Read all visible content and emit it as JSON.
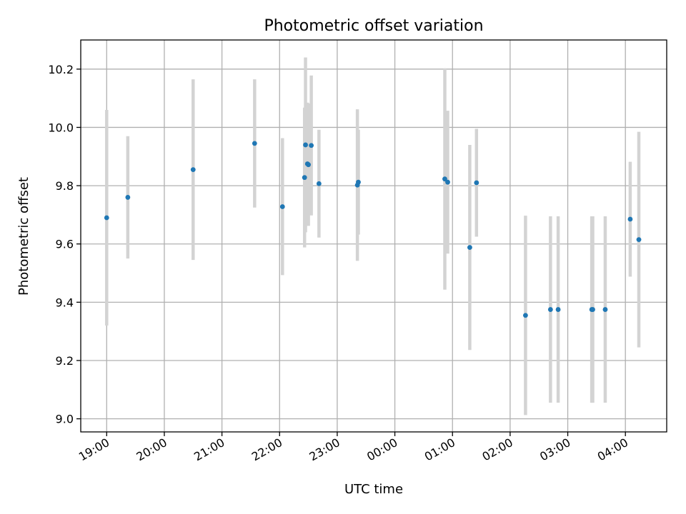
{
  "chart_data": {
    "type": "scatter",
    "title": "Photometric offset variation",
    "xlabel": "UTC time",
    "ylabel": "Photometric offset",
    "x_start": "2000-01-01T18:33",
    "x_end": "2000-01-02T04:43",
    "ylim": [
      8.955,
      10.3
    ],
    "grid": true,
    "colors": {
      "point": "#1f77b4",
      "error_bar": "#d3d3d3"
    },
    "x_ticks": [
      {
        "time": "2000-01-01T19:00",
        "label": "19:00"
      },
      {
        "time": "2000-01-01T20:00",
        "label": "20:00"
      },
      {
        "time": "2000-01-01T21:00",
        "label": "21:00"
      },
      {
        "time": "2000-01-01T22:00",
        "label": "22:00"
      },
      {
        "time": "2000-01-01T23:00",
        "label": "23:00"
      },
      {
        "time": "2000-01-02T00:00",
        "label": "00:00"
      },
      {
        "time": "2000-01-02T01:00",
        "label": "01:00"
      },
      {
        "time": "2000-01-02T02:00",
        "label": "02:00"
      },
      {
        "time": "2000-01-02T03:00",
        "label": "03:00"
      },
      {
        "time": "2000-01-02T04:00",
        "label": "04:00"
      }
    ],
    "y_ticks": [
      {
        "value": 9.0,
        "label": "9.0"
      },
      {
        "value": 9.2,
        "label": "9.2"
      },
      {
        "value": 9.4,
        "label": "9.4"
      },
      {
        "value": 9.6,
        "label": "9.6"
      },
      {
        "value": 9.8,
        "label": "9.8"
      },
      {
        "value": 10.0,
        "label": "10.0"
      },
      {
        "value": 10.2,
        "label": "10.2"
      }
    ],
    "points": [
      {
        "time": "2000-01-01T19:00",
        "y": 9.69,
        "err": 0.37
      },
      {
        "time": "2000-01-01T19:22",
        "y": 9.76,
        "err": 0.21
      },
      {
        "time": "2000-01-01T20:30",
        "y": 9.855,
        "err": 0.31
      },
      {
        "time": "2000-01-01T21:34",
        "y": 9.945,
        "err": 0.22
      },
      {
        "time": "2000-01-01T22:03",
        "y": 9.728,
        "err": 0.235
      },
      {
        "time": "2000-01-01T22:26",
        "y": 9.828,
        "err": 0.24
      },
      {
        "time": "2000-01-01T22:27",
        "y": 9.94,
        "err": 0.3
      },
      {
        "time": "2000-01-01T22:29",
        "y": 9.875,
        "err": 0.21
      },
      {
        "time": "2000-01-01T22:30",
        "y": 9.872,
        "err": 0.21
      },
      {
        "time": "2000-01-01T22:33",
        "y": 9.938,
        "err": 0.24
      },
      {
        "time": "2000-01-01T22:41",
        "y": 9.807,
        "err": 0.185
      },
      {
        "time": "2000-01-01T23:21",
        "y": 9.802,
        "err": 0.26
      },
      {
        "time": "2000-01-01T23:22",
        "y": 9.812,
        "err": 0.18
      },
      {
        "time": "2000-01-02T00:52",
        "y": 9.823,
        "err": 0.38
      },
      {
        "time": "2000-01-02T00:55",
        "y": 9.812,
        "err": 0.245
      },
      {
        "time": "2000-01-02T01:18",
        "y": 9.588,
        "err": 0.352
      },
      {
        "time": "2000-01-02T01:25",
        "y": 9.81,
        "err": 0.185
      },
      {
        "time": "2000-01-02T02:16",
        "y": 9.355,
        "err": 0.342
      },
      {
        "time": "2000-01-02T02:42",
        "y": 9.375,
        "err": 0.32
      },
      {
        "time": "2000-01-02T02:50",
        "y": 9.375,
        "err": 0.32
      },
      {
        "time": "2000-01-02T03:25",
        "y": 9.375,
        "err": 0.32
      },
      {
        "time": "2000-01-02T03:26",
        "y": 9.375,
        "err": 0.32
      },
      {
        "time": "2000-01-02T03:39",
        "y": 9.375,
        "err": 0.32
      },
      {
        "time": "2000-01-02T04:05",
        "y": 9.685,
        "err": 0.197
      },
      {
        "time": "2000-01-02T04:14",
        "y": 9.615,
        "err": 0.37
      }
    ]
  }
}
